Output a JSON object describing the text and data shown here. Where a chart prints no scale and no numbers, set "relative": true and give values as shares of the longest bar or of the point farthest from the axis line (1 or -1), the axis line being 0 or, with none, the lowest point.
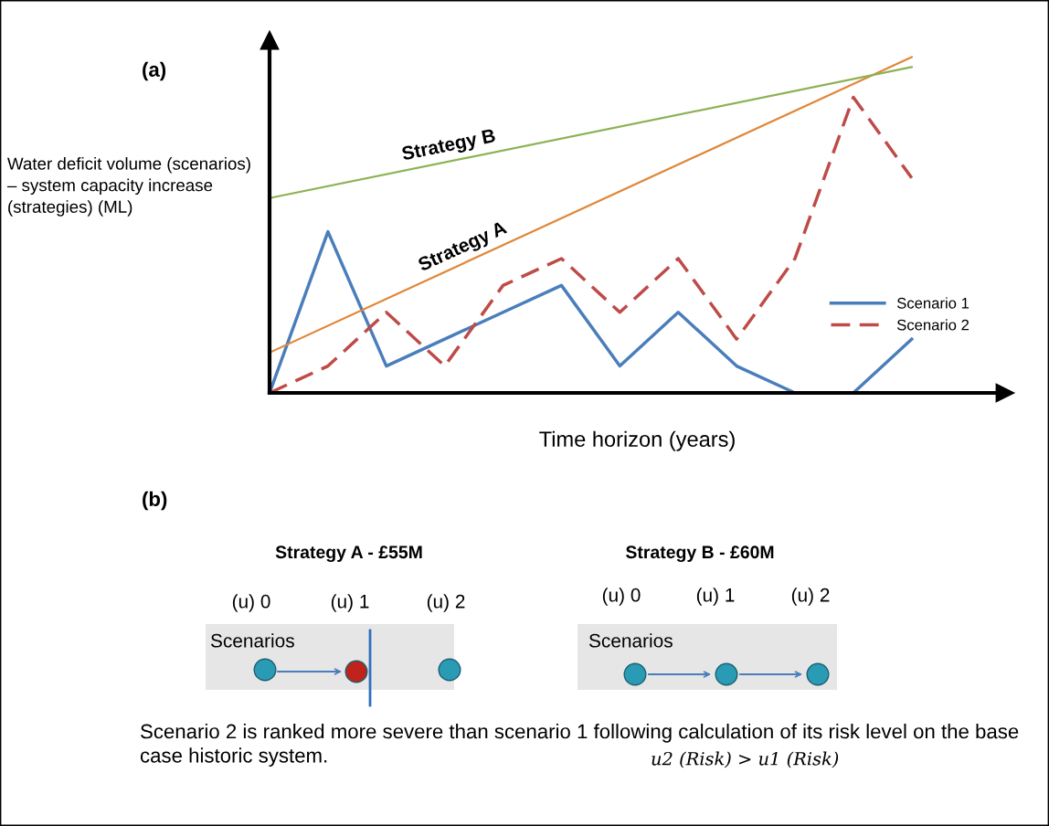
{
  "chart_data": [
    {
      "type": "line",
      "title": "(a)",
      "xlabel": "Time horizon (years)",
      "ylabel": "Water deficit volume (scenarios) – system capacity increase (strategies) (ML)",
      "relative": true,
      "grid": false,
      "tick_labels": false,
      "legend": "bottom right",
      "marker": "none",
      "categories": [
        null,
        null,
        null,
        null,
        null,
        null,
        null,
        null,
        null,
        null,
        null,
        null
      ],
      "series": [
        {
          "name": "Scenario 1",
          "color": "#4a7ebb",
          "line_style": "solid",
          "values": [
            0,
            0.48,
            0.08,
            0.16,
            0.24,
            0.32,
            0.08,
            0.24,
            0.08,
            0,
            0,
            0.16
          ]
        },
        {
          "name": "Scenario 2",
          "color": "#be4b48",
          "line_style": "dashed",
          "values": [
            0,
            0.08,
            0.24,
            0.08,
            0.32,
            0.4,
            0.24,
            0.4,
            0.16,
            0.4,
            0.88,
            0.64
          ]
        },
        {
          "color": "#e0873a",
          "line_style": "solid",
          "values": [
            0.12,
            null,
            null,
            null,
            null,
            null,
            null,
            null,
            null,
            null,
            null,
            1
          ]
        },
        {
          "color": "#8db255",
          "line_style": "solid",
          "values": [
            0.58,
            null,
            null,
            null,
            null,
            null,
            null,
            null,
            null,
            null,
            null,
            0.97
          ]
        }
      ],
      "annotations": [
        {
          "text": "Strategy A",
          "y": 0.39
        },
        {
          "text": "Strategy B",
          "y": 0.69
        }
      ]
    },
    {
      "type": "other",
      "title": "(b)",
      "annotations": [
        "Strategy A - £55M",
        "Strategy B - £60M",
        "(u) 0",
        "(u) 1",
        "(u) 2",
        "(u) 0",
        "(u) 1",
        "(u) 2",
        "Scenarios",
        "Scenarios",
        "Scenario 2 is ranked more severe than scenario 1 following calculation of its risk level on the base case historic system.",
        "u2 (Risk) > u1 (Risk)"
      ]
    }
  ]
}
